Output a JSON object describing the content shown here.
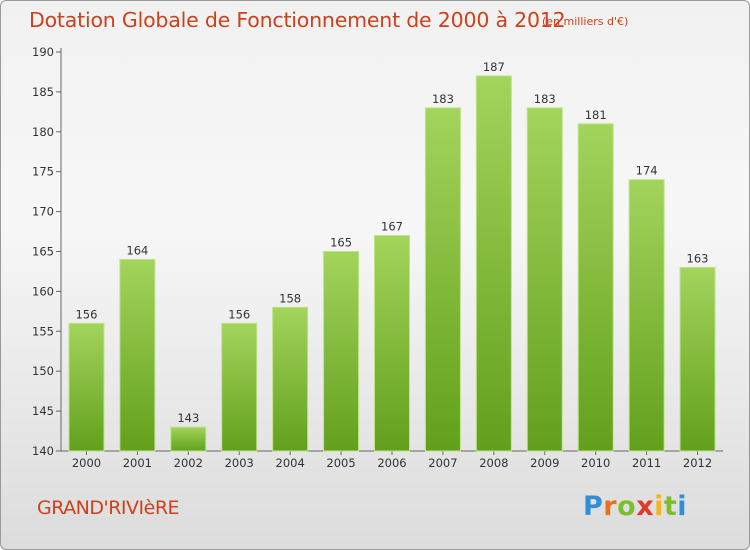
{
  "header": {
    "title": "Dotation Globale de Fonctionnement de 2000 à 2012",
    "unit_note": "(en milliers d'€)"
  },
  "footer": {
    "commune": "GRAND'RIVIèRE",
    "logo_text": "Proxiti"
  },
  "colors": {
    "bar_top": "#a3d45c",
    "bar_bottom": "#62a01c",
    "bar_edge": "#bfe38a",
    "title": "#d0401b"
  },
  "chart_data": {
    "type": "bar",
    "categories": [
      "2000",
      "2001",
      "2002",
      "2003",
      "2004",
      "2005",
      "2006",
      "2007",
      "2008",
      "2009",
      "2010",
      "2011",
      "2012"
    ],
    "values": [
      156,
      164,
      143,
      156,
      158,
      165,
      167,
      183,
      187,
      183,
      181,
      174,
      163
    ],
    "title": "Dotation Globale de Fonctionnement de 2000 à 2012",
    "subtitle": "(en milliers d'€)",
    "ylim": [
      140,
      190
    ],
    "yticks": [
      140,
      145,
      150,
      155,
      160,
      165,
      170,
      175,
      180,
      185,
      190
    ],
    "grid": false,
    "data_labels": true
  }
}
